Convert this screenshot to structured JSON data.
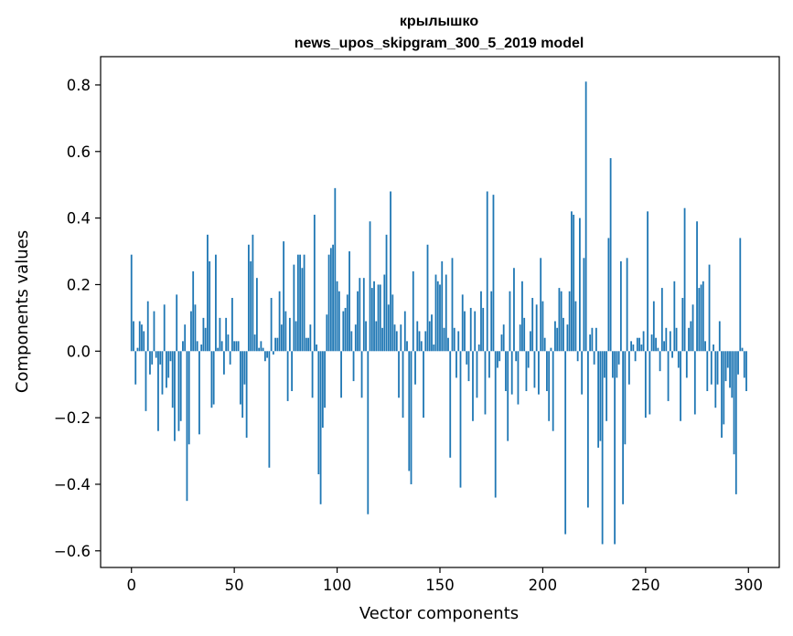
{
  "chart_data": {
    "type": "bar",
    "title": "крылышко",
    "subtitle": "news_upos_skipgram_300_5_2019 model",
    "xlabel": "Vector components",
    "ylabel": "Components values",
    "xlim": [
      -15,
      315
    ],
    "ylim": [
      -0.65,
      0.885
    ],
    "xticks": [
      0,
      50,
      100,
      150,
      200,
      250,
      300
    ],
    "xtick_labels": [
      "0",
      "50",
      "100",
      "150",
      "200",
      "250",
      "300"
    ],
    "yticks": [
      -0.6,
      -0.4,
      -0.2,
      0.0,
      0.2,
      0.4,
      0.6,
      0.8
    ],
    "ytick_labels": [
      "−0.6",
      "−0.4",
      "−0.2",
      "0.0",
      "0.2",
      "0.4",
      "0.6",
      "0.8"
    ],
    "grid": false,
    "color": "#1f77b4",
    "values": [
      0.29,
      0.09,
      -0.1,
      0.01,
      0.09,
      0.08,
      0.06,
      -0.18,
      0.15,
      -0.07,
      -0.04,
      0.12,
      -0.02,
      -0.24,
      -0.04,
      -0.13,
      0.14,
      -0.11,
      -0.08,
      -0.03,
      -0.17,
      -0.27,
      0.17,
      -0.24,
      -0.21,
      0.03,
      0.08,
      -0.45,
      -0.28,
      0.12,
      0.24,
      0.14,
      0.03,
      -0.25,
      0.02,
      0.1,
      0.07,
      0.35,
      0.27,
      -0.17,
      -0.16,
      0.29,
      0.01,
      0.1,
      0.03,
      -0.07,
      0.1,
      0.05,
      -0.04,
      0.16,
      0.03,
      0.03,
      0.03,
      -0.16,
      -0.2,
      -0.1,
      -0.26,
      0.32,
      0.27,
      0.35,
      0.05,
      0.22,
      0.01,
      0.03,
      0.01,
      -0.03,
      -0.02,
      -0.35,
      0.16,
      -0.01,
      0.04,
      0.04,
      0.18,
      0.08,
      0.33,
      0.12,
      -0.15,
      0.1,
      -0.12,
      0.26,
      0.09,
      0.29,
      0.29,
      0.25,
      0.29,
      0.04,
      0.04,
      0.08,
      -0.14,
      0.41,
      0.02,
      -0.37,
      -0.46,
      -0.23,
      -0.17,
      0.11,
      0.29,
      0.31,
      0.32,
      0.49,
      0.21,
      0.18,
      -0.14,
      0.12,
      0.13,
      0.17,
      0.3,
      0.06,
      -0.09,
      0.08,
      0.18,
      0.22,
      -0.14,
      0.22,
      0.09,
      -0.49,
      0.39,
      0.19,
      0.21,
      0.09,
      0.2,
      0.2,
      0.07,
      0.23,
      0.35,
      0.14,
      0.48,
      0.17,
      0.08,
      0.06,
      -0.14,
      0.08,
      -0.2,
      0.12,
      0.03,
      -0.36,
      -0.4,
      0.24,
      -0.1,
      0.09,
      0.06,
      0.03,
      -0.2,
      0.06,
      0.32,
      0.09,
      0.11,
      0.02,
      0.23,
      0.21,
      0.2,
      0.27,
      0.07,
      0.23,
      0.04,
      -0.32,
      0.28,
      0.07,
      -0.08,
      0.06,
      -0.41,
      0.17,
      0.12,
      -0.04,
      -0.09,
      0.13,
      -0.21,
      0.12,
      -0.14,
      0.02,
      0.18,
      0.13,
      -0.19,
      0.48,
      -0.08,
      0.18,
      0.47,
      -0.44,
      -0.05,
      -0.03,
      0.05,
      0.08,
      -0.12,
      -0.27,
      0.18,
      -0.13,
      0.25,
      -0.03,
      -0.16,
      0.08,
      0.21,
      0.1,
      -0.12,
      -0.05,
      0.06,
      0.16,
      -0.11,
      0.14,
      -0.13,
      0.28,
      0.15,
      0.04,
      -0.12,
      -0.21,
      0.01,
      -0.24,
      0.09,
      0.07,
      0.19,
      0.18,
      0.1,
      -0.55,
      0.08,
      0.18,
      0.42,
      0.41,
      0.15,
      -0.03,
      0.4,
      -0.13,
      0.28,
      0.81,
      -0.47,
      0.05,
      0.07,
      -0.04,
      0.07,
      -0.29,
      -0.27,
      -0.58,
      -0.08,
      -0.21,
      0.34,
      0.58,
      -0.08,
      -0.58,
      -0.08,
      -0.04,
      0.27,
      -0.46,
      -0.28,
      0.28,
      -0.1,
      0.03,
      0.02,
      -0.03,
      0.04,
      0.04,
      0.02,
      0.06,
      -0.2,
      0.42,
      -0.19,
      0.05,
      0.15,
      0.04,
      0.01,
      -0.06,
      0.19,
      0.03,
      0.07,
      -0.15,
      0.06,
      -0.02,
      0.21,
      0.07,
      -0.05,
      -0.21,
      0.16,
      0.43,
      -0.08,
      0.07,
      0.09,
      0.14,
      -0.19,
      0.39,
      0.19,
      0.2,
      0.21,
      0.03,
      -0.12,
      0.26,
      -0.1,
      0.02,
      -0.17,
      -0.1,
      0.09,
      -0.26,
      -0.22,
      -0.09,
      -0.05,
      -0.11,
      -0.14,
      -0.31,
      -0.43,
      -0.07,
      0.34,
      0.01,
      -0.08,
      -0.12
    ]
  }
}
